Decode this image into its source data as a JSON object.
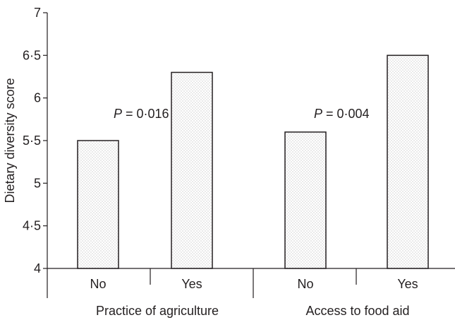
{
  "chart_data": {
    "type": "bar",
    "ylabel": "Dietary diversity score",
    "ylim": [
      4,
      7
    ],
    "yticks": [
      "4",
      "4·5",
      "5",
      "5·5",
      "6",
      "6·5",
      "7"
    ],
    "groups": [
      {
        "label": "Practice of agriculture",
        "annotation": {
          "prefix": "P",
          "text": " = 0·016"
        },
        "bars": [
          {
            "category": "No",
            "value": 5.5
          },
          {
            "category": "Yes",
            "value": 6.3
          }
        ]
      },
      {
        "label": "Access to food aid",
        "annotation": {
          "prefix": "P",
          "text": " = 0·004"
        },
        "bars": [
          {
            "category": "No",
            "value": 5.6
          },
          {
            "category": "Yes",
            "value": 6.5
          }
        ]
      }
    ],
    "bar_fill": "stippled",
    "colors": {
      "ink": "#231f20",
      "dot": "#9a9a9a",
      "background": "#ffffff"
    },
    "grid": false,
    "legend": "none"
  }
}
